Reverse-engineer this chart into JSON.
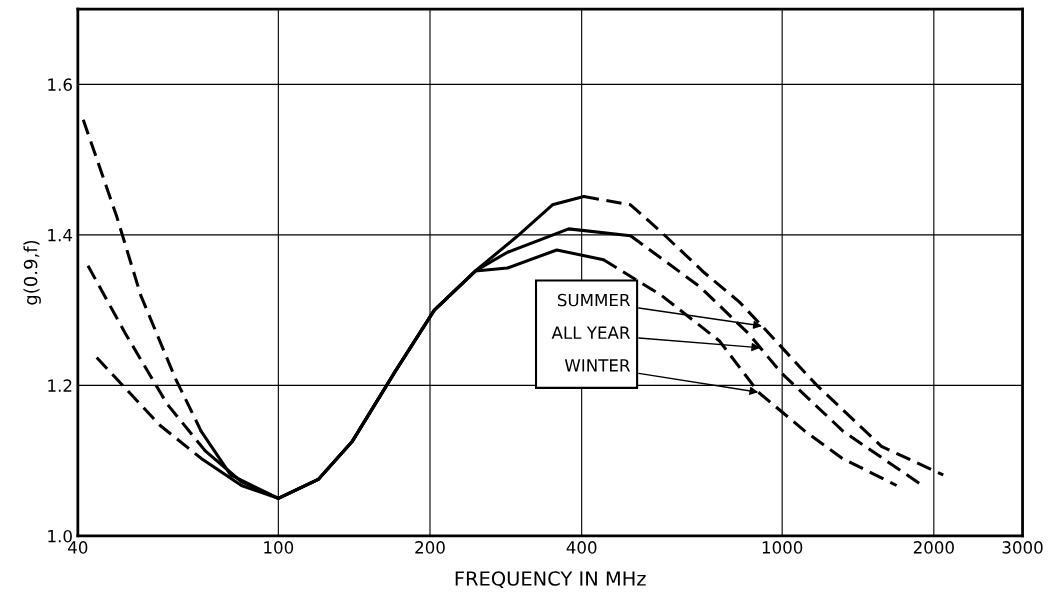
{
  "chart_data": {
    "type": "line",
    "xlabel": "FREQUENCY IN MHz",
    "ylabel": "g(0.9,f)",
    "log": "x",
    "grid": true,
    "legend": false,
    "xlim": [
      40,
      3000
    ],
    "xticks": [
      40,
      100,
      200,
      400,
      1000,
      2000,
      3000
    ],
    "ylim": [
      1.0,
      1.7
    ],
    "yticks": [
      {
        "value": 1.0,
        "label": "1.0"
      },
      1.2,
      1.4,
      1.6
    ],
    "series": [
      {
        "color": "#000000",
        "line_style": "dashed",
        "x": [
          41,
          47.8,
          53.3,
          62.5,
          70.3
        ],
        "values": [
          1.553,
          1.424,
          1.32,
          1.209,
          1.139
        ]
      },
      {
        "color": "#000000",
        "line_style": "dashed",
        "x": [
          41.9,
          49.8,
          60.2,
          71.6
        ],
        "values": [
          1.359,
          1.268,
          1.175,
          1.113
        ]
      },
      {
        "color": "#000000",
        "line_style": "dashed",
        "x": [
          43.6,
          58.2,
          70.3
        ],
        "values": [
          1.237,
          1.147,
          1.103
        ]
      },
      {
        "color": "#000000",
        "line_style": "solid",
        "x": [
          70.3,
          80.4,
          100,
          120,
          140,
          170,
          204,
          246,
          299,
          350,
          404
        ],
        "values": [
          1.139,
          1.081,
          1.05,
          1.075,
          1.125,
          1.217,
          1.3,
          1.352,
          1.399,
          1.44,
          1.451
        ]
      },
      {
        "color": "#000000",
        "line_style": "solid",
        "x": [
          71.6,
          84.5,
          100,
          120,
          140,
          170,
          204,
          246,
          285,
          377,
          500
        ],
        "values": [
          1.113,
          1.072,
          1.05,
          1.075,
          1.125,
          1.217,
          1.3,
          1.352,
          1.377,
          1.408,
          1.399
        ]
      },
      {
        "color": "#000000",
        "line_style": "solid",
        "x": [
          70.3,
          84.5,
          100,
          120,
          140,
          170,
          204,
          246,
          285,
          357,
          442
        ],
        "values": [
          1.103,
          1.067,
          1.05,
          1.075,
          1.125,
          1.217,
          1.3,
          1.352,
          1.356,
          1.38,
          1.367
        ]
      },
      {
        "color": "#000000",
        "line_style": "dashed",
        "x": [
          404,
          500,
          575,
          700,
          822,
          912,
          1168,
          1574,
          2088
        ],
        "values": [
          1.451,
          1.44,
          1.404,
          1.35,
          1.311,
          1.279,
          1.201,
          1.119,
          1.081
        ]
      },
      {
        "color": "#000000",
        "line_style": "dashed",
        "x": [
          500,
          687,
          860,
          905,
          995,
          1322,
          1880
        ],
        "values": [
          1.399,
          1.331,
          1.268,
          1.25,
          1.217,
          1.139,
          1.069
        ]
      },
      {
        "color": "#000000",
        "line_style": "dashed",
        "x": [
          442,
          575,
          751,
          897,
          1111,
          1317,
          1687
        ],
        "values": [
          1.367,
          1.32,
          1.259,
          1.191,
          1.139,
          1.103,
          1.067
        ]
      }
    ],
    "annotations": [
      {
        "text": "SUMMER",
        "x": 912,
        "y": 1.279
      },
      {
        "text": "ALL YEAR",
        "x": 905,
        "y": 1.25
      },
      {
        "text": "WINTER",
        "x": 897,
        "y": 1.191
      }
    ]
  }
}
